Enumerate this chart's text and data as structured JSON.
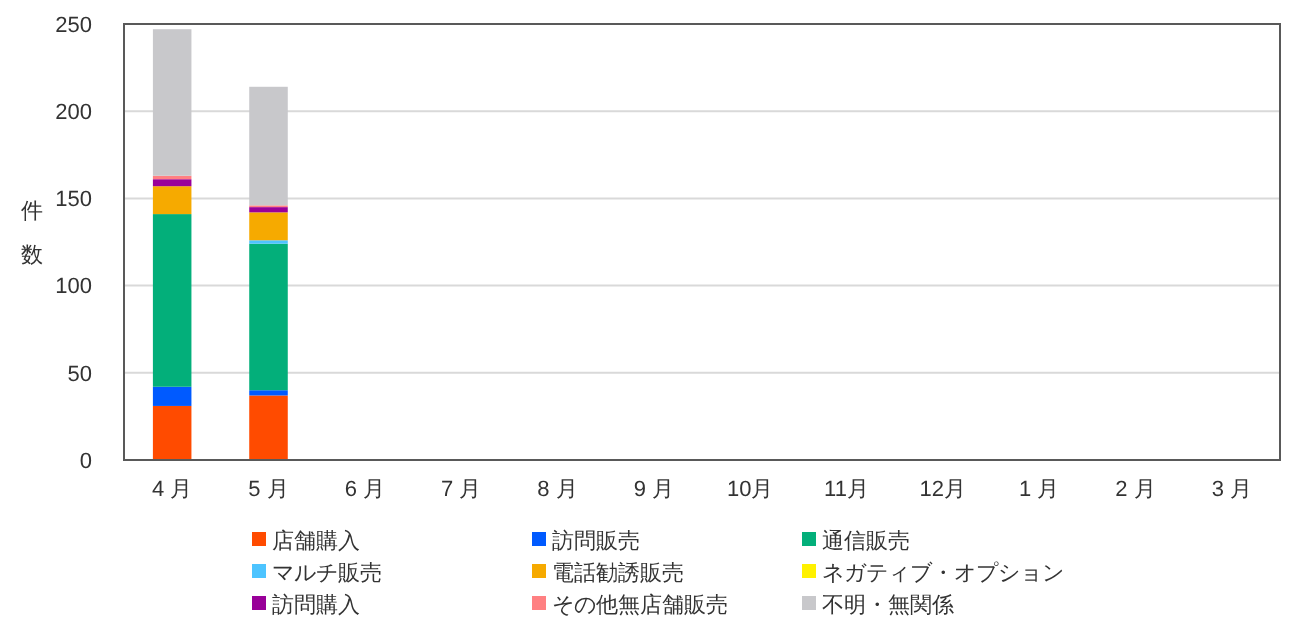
{
  "chart_data": {
    "type": "bar",
    "stacked": true,
    "ylabel": "件数",
    "categories": [
      "4 月",
      "5 月",
      "6 月",
      "7 月",
      "8 月",
      "9 月",
      "10月",
      "11月",
      "12月",
      "1 月",
      "2 月",
      "3 月"
    ],
    "series": [
      {
        "name": "店舗購入",
        "color": "#ff4b00",
        "values": [
          31,
          37,
          null,
          null,
          null,
          null,
          null,
          null,
          null,
          null,
          null,
          null
        ]
      },
      {
        "name": "訪問販売",
        "color": "#005aff",
        "values": [
          11,
          3,
          null,
          null,
          null,
          null,
          null,
          null,
          null,
          null,
          null,
          null
        ]
      },
      {
        "name": "通信販売",
        "color": "#03af7a",
        "values": [
          99,
          84,
          null,
          null,
          null,
          null,
          null,
          null,
          null,
          null,
          null,
          null
        ]
      },
      {
        "name": "マルチ販売",
        "color": "#4dc4ff",
        "values": [
          0,
          2,
          null,
          null,
          null,
          null,
          null,
          null,
          null,
          null,
          null,
          null
        ]
      },
      {
        "name": "電話勧誘販売",
        "color": "#f6aa00",
        "values": [
          16,
          16,
          null,
          null,
          null,
          null,
          null,
          null,
          null,
          null,
          null,
          null
        ]
      },
      {
        "name": "ネガティブ・オプション",
        "color": "#fff100",
        "values": [
          0,
          0,
          null,
          null,
          null,
          null,
          null,
          null,
          null,
          null,
          null,
          null
        ]
      },
      {
        "name": "訪問購入",
        "color": "#990099",
        "values": [
          4,
          3,
          null,
          null,
          null,
          null,
          null,
          null,
          null,
          null,
          null,
          null
        ]
      },
      {
        "name": "その他無店舗販売",
        "color": "#ff8082",
        "values": [
          2,
          1,
          null,
          null,
          null,
          null,
          null,
          null,
          null,
          null,
          null,
          null
        ]
      },
      {
        "name": "不明・無関係",
        "color": "#c8c8cb",
        "values": [
          84,
          68,
          null,
          null,
          null,
          null,
          null,
          null,
          null,
          null,
          null,
          null
        ]
      }
    ],
    "ylim": [
      0,
      250
    ],
    "yticks": [
      0,
      50,
      100,
      150,
      200,
      250
    ],
    "grid": "y",
    "legend": "bottom"
  }
}
